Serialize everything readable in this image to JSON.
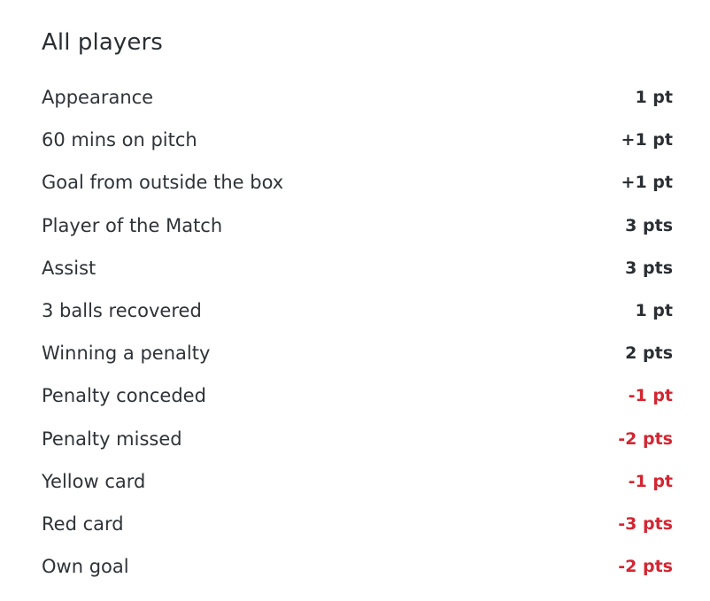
{
  "section": {
    "title": "All players"
  },
  "colors": {
    "text": "#2b2f33",
    "negative": "#d32632"
  },
  "rules": [
    {
      "label": "Appearance",
      "points": "1 pt",
      "negative": false
    },
    {
      "label": "60 mins on pitch",
      "points": "+1 pt",
      "negative": false
    },
    {
      "label": "Goal from outside the box",
      "points": "+1 pt",
      "negative": false
    },
    {
      "label": "Player of the Match",
      "points": "3 pts",
      "negative": false
    },
    {
      "label": "Assist",
      "points": "3 pts",
      "negative": false
    },
    {
      "label": "3 balls recovered",
      "points": "1 pt",
      "negative": false
    },
    {
      "label": "Winning a penalty",
      "points": "2 pts",
      "negative": false
    },
    {
      "label": "Penalty conceded",
      "points": "-1 pt",
      "negative": true
    },
    {
      "label": "Penalty missed",
      "points": "-2 pts",
      "negative": true
    },
    {
      "label": "Yellow card",
      "points": "-1 pt",
      "negative": true
    },
    {
      "label": "Red card",
      "points": "-3 pts",
      "negative": true
    },
    {
      "label": "Own goal",
      "points": "-2 pts",
      "negative": true
    }
  ]
}
